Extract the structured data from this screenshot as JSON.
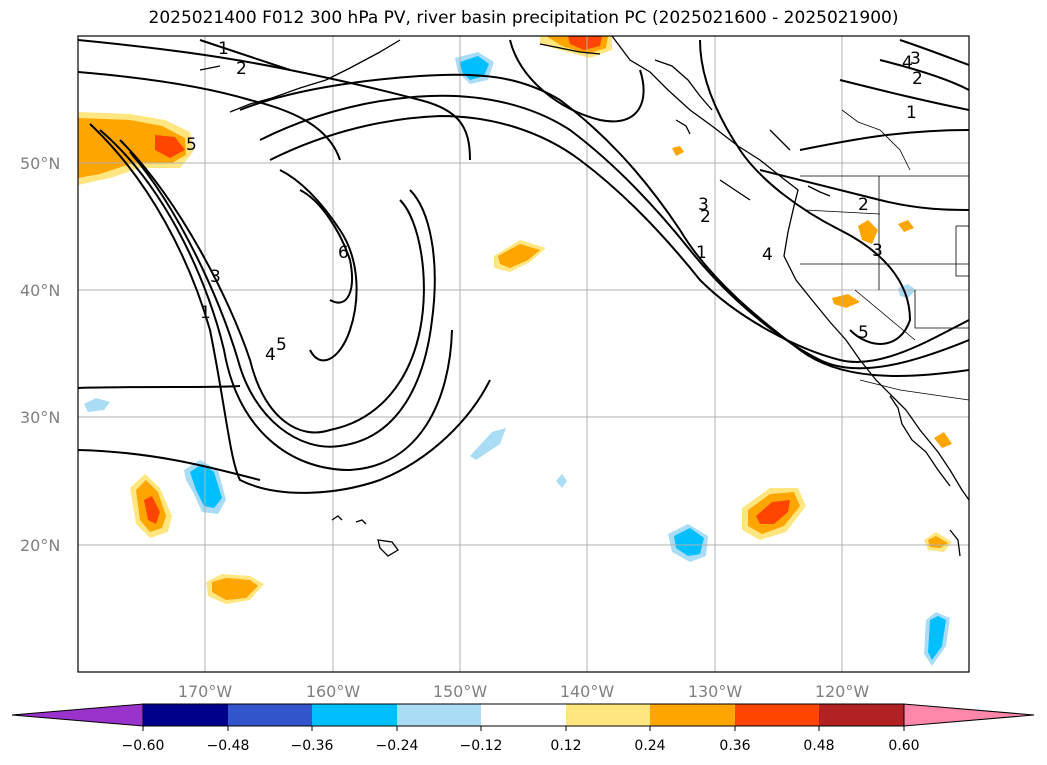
{
  "title": "2025021400 F012 300 hPa PV, river basin precipitation PC (2025021600 - 2025021900)",
  "map": {
    "lat_labels": [
      "50°N",
      "40°N",
      "30°N",
      "20°N"
    ],
    "lon_labels": [
      "170°W",
      "160°W",
      "150°W",
      "140°W",
      "130°W",
      "120°W"
    ],
    "contour_labels": [
      "1",
      "2",
      "3",
      "4",
      "5",
      "6",
      "1",
      "2",
      "3",
      "4",
      "5",
      "1",
      "2",
      "3",
      "4",
      "1",
      "2",
      "3",
      "5"
    ]
  },
  "colorbar": {
    "ticks": [
      "−0.60",
      "−0.48",
      "−0.36",
      "−0.24",
      "−0.12",
      "0.12",
      "0.24",
      "0.36",
      "0.48",
      "0.60"
    ],
    "colors": [
      "#9933cc",
      "#00008b",
      "#3355cc",
      "#00bfff",
      "#aadcf5",
      "#ffffff",
      "#ffe680",
      "#ffa500",
      "#ff4500",
      "#b22222",
      "#ff88aa"
    ]
  },
  "colors": {
    "orange": "#ffa500",
    "red_orange": "#ff4500",
    "light_yellow": "#ffe680",
    "cyan": "#00bfff",
    "light_blue": "#aadcf5",
    "grid": "#b0b0b0"
  }
}
